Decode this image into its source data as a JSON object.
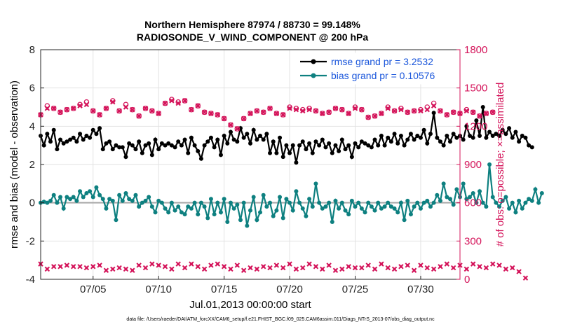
{
  "chart_data": {
    "type": "line",
    "title_line1": "Northern Hemisphere 87974 / 88730 = 99.148%",
    "title_line2": "RADIOSONDE_V_WIND_COMPONENT @ 200 hPa",
    "xlabel": "Jul.01,2013 00:00:00 start",
    "ylabel_left": "rmse and bias (model - observation)",
    "ylabel_right": "# of obs: o=possible; ×=assimilated",
    "xlim": [
      1,
      33
    ],
    "ylim_left": [
      -4,
      8
    ],
    "ylim_right": [
      0,
      1800
    ],
    "x_ticks": [
      5,
      10,
      15,
      20,
      25,
      30
    ],
    "x_tick_labels": [
      "07/05",
      "07/10",
      "07/15",
      "07/20",
      "07/25",
      "07/30"
    ],
    "y_ticks_left": [
      -4,
      -2,
      0,
      2,
      4,
      6,
      8
    ],
    "y_tick_labels_left": [
      "-4",
      "-2",
      "0",
      "2",
      "4",
      "6",
      "8"
    ],
    "y_ticks_right": [
      0,
      300,
      600,
      900,
      1200,
      1500,
      1800
    ],
    "y_tick_labels_right": [
      "0",
      "300",
      "600",
      "900",
      "1200",
      "1500",
      "1800"
    ],
    "grid": true,
    "legend_position": "top-right",
    "series": [
      {
        "name": "rmse grand pr = 3.2532",
        "axis": "left",
        "color": "#000000",
        "x_start": 1,
        "x_step": 0.25,
        "values": [
          3.5,
          3.0,
          3.6,
          3.2,
          3.8,
          2.8,
          3.3,
          3.1,
          3.2,
          3.3,
          3.4,
          3.2,
          3.6,
          3.3,
          3.5,
          3.4,
          3.8,
          3.6,
          3.9,
          2.8,
          3.1,
          3.2,
          2.8,
          3.0,
          2.9,
          2.9,
          2.4,
          3.1,
          3.0,
          2.8,
          3.2,
          2.6,
          3.0,
          3.1,
          2.5,
          3.3,
          2.8,
          3.1,
          3.0,
          3.1,
          3.0,
          2.9,
          3.2,
          3.0,
          3.3,
          2.6,
          3.4,
          3.0,
          2.7,
          2.3,
          3.0,
          3.2,
          3.4,
          2.9,
          3.3,
          2.5,
          3.5,
          3.1,
          3.7,
          3.3,
          3.2,
          3.9,
          3.4,
          3.6,
          3.1,
          3.8,
          3.3,
          3.5,
          3.3,
          3.6,
          2.6,
          3.2,
          2.6,
          3.4,
          2.4,
          3.0,
          2.6,
          3.0,
          2.1,
          3.0,
          3.2,
          2.8,
          3.1,
          2.6,
          3.2,
          3.0,
          3.3,
          2.9,
          3.1,
          2.6,
          3.0,
          2.7,
          3.3,
          2.8,
          3.0,
          2.4,
          3.1,
          2.9,
          3.2,
          3.1,
          3.0,
          2.9,
          3.3,
          3.0,
          3.5,
          3.0,
          3.4,
          3.2,
          3.6,
          3.1,
          3.5,
          3.0,
          3.3,
          3.6,
          3.3,
          3.5,
          3.4,
          3.8,
          3.1,
          3.6,
          4.7,
          3.4,
          3.2,
          3.0,
          3.5,
          3.2,
          3.6,
          3.4,
          3.5,
          3.3,
          4.0,
          3.5,
          3.4,
          4.3,
          3.5,
          5.0,
          3.4,
          3.7,
          3.5,
          3.6,
          3.5,
          3.8,
          3.6,
          3.9,
          3.4,
          3.7,
          3.2,
          3.5,
          3.4,
          3.0,
          2.9
        ]
      },
      {
        "name": "bias grand pr = 0.10576",
        "axis": "left",
        "color": "#0e8080",
        "x_start": 1,
        "x_step": 0.25,
        "values": [
          0.0,
          0.05,
          0.0,
          0.1,
          0.4,
          0.0,
          0.3,
          -0.3,
          0.3,
          0.2,
          0.3,
          0.1,
          0.6,
          0.3,
          0.5,
          0.6,
          0.3,
          0.8,
          0.4,
          0.2,
          -0.3,
          0.2,
          0.1,
          -0.9,
          0.4,
          0.1,
          0.5,
          0.2,
          0.1,
          0.4,
          -0.2,
          0.0,
          0.1,
          0.3,
          -0.2,
          -0.5,
          0.1,
          0.0,
          -0.3,
          -0.5,
          0.0,
          -0.4,
          -0.2,
          -0.5,
          -0.6,
          -0.2,
          -0.3,
          0.0,
          -0.6,
          0.0,
          -0.2,
          -0.8,
          0.2,
          -0.6,
          0.0,
          -0.5,
          0.2,
          -1.0,
          0.0,
          -0.3,
          -0.1,
          -0.9,
          0.0,
          -1.2,
          -0.4,
          0.3,
          -0.9,
          -0.5,
          0.4,
          -0.2,
          0.0,
          -0.7,
          -0.4,
          0.3,
          -0.8,
          0.2,
          0.0,
          -0.4,
          0.6,
          0.0,
          -0.3,
          -0.7,
          0.2,
          -0.2,
          1.0,
          0.0,
          -0.3,
          -0.2,
          0.0,
          -1.0,
          0.1,
          -0.3,
          0.0,
          -0.4,
          -0.6,
          0.1,
          -0.2,
          0.0,
          -0.3,
          -0.5,
          0.0,
          -0.2,
          -0.4,
          0.0,
          -0.3,
          -0.2,
          0.0,
          -0.2,
          -0.3,
          -0.5,
          0.0,
          -0.9,
          0.1,
          -0.6,
          -0.2,
          0.0,
          -0.3,
          0.0,
          0.1,
          -0.2,
          0.0,
          0.4,
          0.1,
          1.0,
          0.3,
          0.2,
          -0.1,
          0.7,
          0.3,
          1.0,
          0.2,
          0.3,
          0.5,
          0.0,
          0.6,
          0.0,
          -0.2,
          2.0,
          0.3,
          0.0,
          -0.2,
          0.1,
          0.3,
          -0.3,
          0.0,
          -0.5,
          0.1,
          -0.3,
          0.0,
          0.2,
          0.1,
          0.7,
          0.0,
          0.5
        ]
      },
      {
        "name": "obs possible",
        "axis": "right",
        "color": "#d4145a",
        "marker": "o",
        "x_start": 1,
        "x_step": 0.5,
        "values": [
          1290,
          1360,
          1340,
          1310,
          1330,
          1340,
          1370,
          1390,
          1320,
          1290,
          1340,
          1400,
          1320,
          1370,
          1330,
          1280,
          1340,
          1320,
          1300,
          1380,
          1410,
          1390,
          1400,
          1330,
          1360,
          1310,
          1300,
          1290,
          1260,
          1210,
          1180,
          1260,
          1300,
          1320,
          1310,
          1340,
          1300,
          1290,
          1350,
          1340,
          1330,
          1340,
          1320,
          1300,
          1310,
          1340,
          1330,
          1300,
          1350,
          1330,
          1270,
          1280,
          1300,
          1350,
          1320,
          1340,
          1310,
          1320,
          1330,
          1350,
          1380,
          1320,
          1290,
          1310,
          1300,
          1330,
          1310,
          1280,
          1300,
          1310
        ]
      },
      {
        "name": "obs assimilated",
        "axis": "right",
        "color": "#d4145a",
        "marker": "x",
        "x_start": 1,
        "x_step": 0.5,
        "values": [
          1290,
          1340,
          1340,
          1310,
          1330,
          1340,
          1360,
          1370,
          1320,
          1290,
          1340,
          1390,
          1320,
          1350,
          1330,
          1280,
          1340,
          1320,
          1300,
          1380,
          1400,
          1380,
          1400,
          1330,
          1360,
          1310,
          1300,
          1290,
          1260,
          1210,
          1180,
          1260,
          1300,
          1320,
          1310,
          1340,
          1300,
          1290,
          1340,
          1330,
          1320,
          1330,
          1320,
          1300,
          1310,
          1340,
          1330,
          1300,
          1340,
          1330,
          1270,
          1280,
          1300,
          1340,
          1320,
          1330,
          1310,
          1320,
          1320,
          1330,
          1360,
          1320,
          1290,
          1310,
          1300,
          1320,
          1310,
          1280,
          1300,
          1310
        ]
      },
      {
        "name": "obs assimilated (lower band)",
        "axis": "right",
        "color": "#d4145a",
        "marker": "x",
        "x_start": 1,
        "x_step": 0.5,
        "values": [
          120,
          80,
          100,
          100,
          110,
          100,
          100,
          90,
          100,
          110,
          70,
          80,
          90,
          80,
          70,
          110,
          90,
          120,
          110,
          100,
          80,
          120,
          90,
          120,
          100,
          80,
          110,
          120,
          100,
          80,
          110,
          70,
          90,
          80,
          100,
          90,
          110,
          90,
          120,
          80,
          90,
          120,
          100,
          80,
          110,
          70,
          80,
          100,
          90,
          90,
          110,
          80,
          120,
          90,
          80,
          100,
          110,
          70,
          110,
          90,
          80,
          100,
          120,
          90,
          110,
          80,
          120,
          100,
          90,
          120,
          110,
          80,
          90,
          60,
          10
        ]
      }
    ],
    "footer": "data file: /Users/raeder/DAI/ATM_forcXX/CAM6_setup/f.e21.FHIST_BGC.f09_025.CAM6assim.011/Diags_NTrS_2013-07/obs_diag_output.nc"
  }
}
